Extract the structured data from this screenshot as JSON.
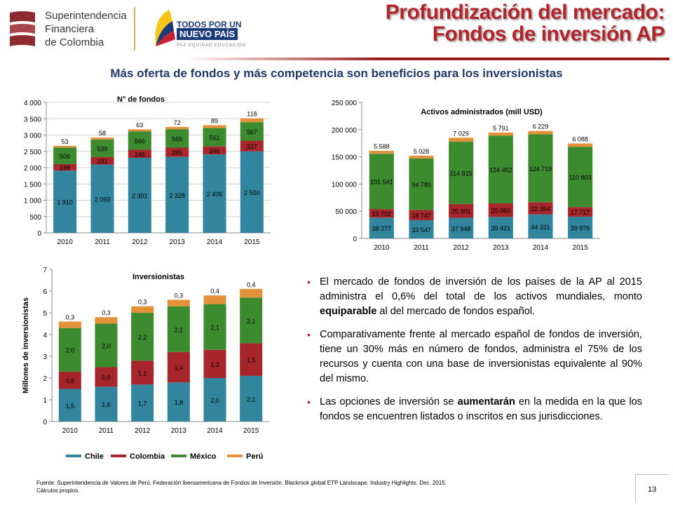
{
  "header": {
    "logo_sfc_lines": [
      "Superintendencia",
      "Financiera",
      "de Colombia"
    ],
    "logo_tpp_lines": [
      "TODOS POR UN",
      "NUEVO PAÍS"
    ],
    "logo_tpp_tagline": "PAZ  EQUIDAD  EDUCACIÓN",
    "title_line1": "Profundización del mercado:",
    "title_line2": "Fondos de inversión AP"
  },
  "subtitle": "Más oferta de fondos y más competencia son beneficios para los inversionistas",
  "colors": {
    "Chile": "#31859c",
    "Colombia": "#a6262b",
    "Mexico": "#3d8b2f",
    "Peru": "#e3923a",
    "title": "#b3242a",
    "subtitle": "#1f3864"
  },
  "chart_data": [
    {
      "type": "bar",
      "stacked": true,
      "title": "N° de fondos",
      "categories": [
        "2010",
        "2011",
        "2012",
        "2013",
        "2014",
        "2015"
      ],
      "ylim": [
        0,
        4000
      ],
      "yticks": [
        0,
        500,
        1000,
        1500,
        2000,
        2500,
        3000,
        3500,
        4000
      ],
      "ytick_labels": [
        "0",
        "500",
        "1 000",
        "1 500",
        "2 000",
        "2 500",
        "3 000",
        "3 500",
        "4 000"
      ],
      "grid": true,
      "series": [
        {
          "values": [
            1910,
            2093,
            2301,
            2328,
            2406,
            2500
          ],
          "labels": [
            "1 910",
            "2 093",
            "2 301",
            "2 328",
            "2 406",
            "2 500"
          ]
        },
        {
          "values": [
            199,
            231,
            246,
            285,
            246,
            327
          ],
          "labels": [
            "199",
            "231",
            "246",
            "285",
            "246",
            "327"
          ]
        },
        {
          "values": [
            506,
            539,
            566,
            565,
            561,
            567
          ],
          "labels": [
            "506",
            "539",
            "566",
            "565",
            "561",
            "567"
          ]
        },
        {
          "values": [
            53,
            58,
            63,
            72,
            89,
            118
          ],
          "labels": [
            "53",
            "58",
            "63",
            "72",
            "89",
            "118"
          ]
        }
      ]
    },
    {
      "type": "bar",
      "stacked": true,
      "title": "Activos administrados (mill USD)",
      "categories": [
        "2010",
        "2011",
        "2012",
        "2013",
        "2014",
        "2015"
      ],
      "ylim": [
        0,
        250000
      ],
      "yticks": [
        0,
        50000,
        100000,
        150000,
        200000,
        250000
      ],
      "ytick_labels": [
        "0",
        "50 000",
        "100 000",
        "150 000",
        "200 000",
        "250 000"
      ],
      "grid": false,
      "series": [
        {
          "values": [
            38277,
            33547,
            37948,
            39421,
            44321,
            39976
          ],
          "labels": [
            "38 277",
            "33 547",
            "37 948",
            "39 421",
            "44 321",
            "39 976"
          ]
        },
        {
          "values": [
            15702,
            18747,
            25301,
            25060,
            22354,
            17717
          ],
          "labels": [
            "15 702",
            "18 747",
            "25 301",
            "25 060",
            "22 354",
            "17 717"
          ]
        },
        {
          "values": [
            101541,
            94780,
            114815,
            124452,
            124719,
            110803
          ],
          "labels": [
            "101 541",
            "94 780",
            "114 815",
            "124 452",
            "124 719",
            "110 803"
          ]
        },
        {
          "values": [
            5588,
            5028,
            7029,
            5791,
            6229,
            6088
          ],
          "labels": [
            "5 588",
            "5 028",
            "7 029",
            "5 791",
            "6 229",
            "6 088"
          ]
        }
      ]
    },
    {
      "type": "bar",
      "stacked": true,
      "title": "Inversionistas",
      "ylabel": "Millones de inversionistas",
      "categories": [
        "2010",
        "2011",
        "2012",
        "2013",
        "2014",
        "2015"
      ],
      "ylim": [
        0,
        7
      ],
      "yticks": [
        0,
        1,
        2,
        3,
        4,
        5,
        6,
        7
      ],
      "ytick_labels": [
        "0",
        "1",
        "2",
        "3",
        "4",
        "5",
        "6",
        "7"
      ],
      "grid": false,
      "legend_position": "bottom",
      "series": [
        {
          "name": "Chile",
          "values": [
            1.5,
            1.6,
            1.7,
            1.8,
            2.0,
            2.1
          ],
          "labels": [
            "1,5",
            "1,6",
            "1,7",
            "1,8",
            "2,0",
            "2,1"
          ]
        },
        {
          "name": "Colombia",
          "values": [
            0.8,
            0.9,
            1.1,
            1.4,
            1.3,
            1.5
          ],
          "labels": [
            "0,8",
            "0,9",
            "1,1",
            "1,4",
            "1,3",
            "1,5"
          ]
        },
        {
          "name": "México",
          "values": [
            2.0,
            2.0,
            2.2,
            2.1,
            2.1,
            2.1
          ],
          "labels": [
            "2,0",
            "2,0",
            "2,2",
            "2,1",
            "2,1",
            "2,1"
          ]
        },
        {
          "name": "Perú",
          "values": [
            0.3,
            0.3,
            0.3,
            0.3,
            0.4,
            0.4
          ],
          "labels": [
            "0,3",
            "0,3",
            "0,3",
            "0,3",
            "0,4",
            "0,4"
          ]
        }
      ]
    }
  ],
  "bullets": [
    {
      "before": "El mercado de fondos de inversión de los países de la AP al 2015 administra el 0,6% del total de los activos mundiales, monto ",
      "bold": "equiparable",
      "after": " al del mercado de fondos español."
    },
    {
      "before": "Comparativamente frente al mercado español de fondos de inversión, tiene un 30% más en número de fondos, administra el 75% de los recursos y cuenta con una base de inversionistas equivalente al 90% del mismo.",
      "bold": "",
      "after": ""
    },
    {
      "before": "Las opciones de inversión se ",
      "bold": "aumentarán",
      "after": " en la medida en la que los fondos se encuentren listados o inscritos en sus jurisdicciones."
    }
  ],
  "source_line1": "Fuente: Superintendencia de Valores de Perú. Federación Iberoamericana de Fondos de Inversión. Blackrock global ETP Landscape. Industry Highlights. Dec. 2015.",
  "source_line2": "Cálculos propios.",
  "page_number": "13"
}
